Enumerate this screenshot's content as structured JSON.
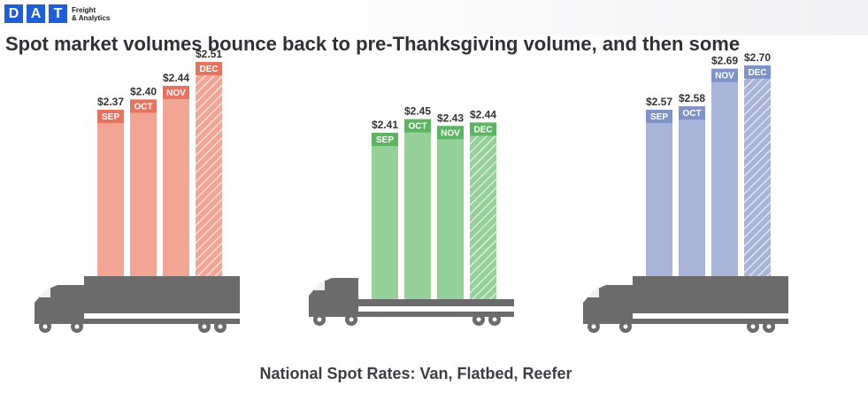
{
  "brand": {
    "logo_letters": [
      "D",
      "A",
      "T"
    ],
    "tagline_line1": "Freight",
    "tagline_line2": "& Analytics",
    "color": "#1e5fd6"
  },
  "headline": "Spot market volumes bounce back to pre-Thanksgiving volume, and then some",
  "caption": "National Spot Rates: Van, Flatbed, Reefer",
  "chart_data": {
    "type": "bar",
    "title": "National Spot Rates: Van, Flatbed, Reefer",
    "categories": [
      "SEP",
      "OCT",
      "NOV",
      "DEC"
    ],
    "value_prefix": "$",
    "hatched_category": "DEC",
    "truck_color": "#6b6b6b",
    "series": [
      {
        "values": [
          2.37,
          2.4,
          2.44,
          2.51
        ],
        "color": "#f2a595",
        "label_color": "#e5735f"
      },
      {
        "values": [
          2.41,
          2.45,
          2.43,
          2.44
        ],
        "color": "#97d19a",
        "label_color": "#5fb463"
      },
      {
        "values": [
          2.57,
          2.58,
          2.69,
          2.7
        ],
        "color": "#a8b5d9",
        "label_color": "#7f93c7"
      }
    ]
  }
}
